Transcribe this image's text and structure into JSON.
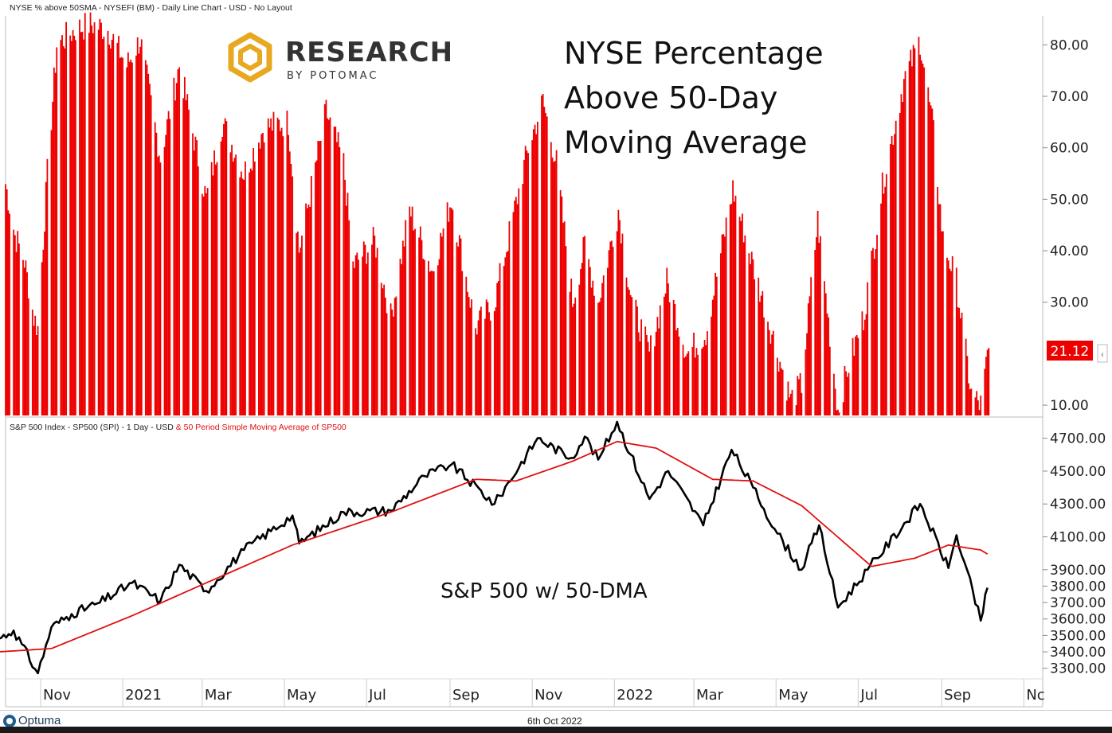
{
  "header": {
    "top_chart_info": "NYSE % above 50SMA - NYSEFI (BM) - Daily Line Chart - USD - No Layout",
    "bottom_chart_info_black": "S&P 500 Index  - SP500 (SPI) - 1 Day - USD ",
    "bottom_chart_info_red": "& 50 Period Simple Moving Average of SP500"
  },
  "logo": {
    "line1": "RESEARCH",
    "line2": "BY POTOMAC"
  },
  "annotations": {
    "title_line1": "NYSE Percentage",
    "title_line2": "Above 50-Day",
    "title_line3": "Moving Average",
    "sp_label": "S&P 500 w/ 50-DMA"
  },
  "last_value_label": "21.12",
  "footer": {
    "brand": "Optuma",
    "date": "6th Oct 2022"
  },
  "colors": {
    "bars": "#ee0000",
    "price": "#000000",
    "sma": "#e01010",
    "value_tag": "#ee0000"
  },
  "chart_data": [
    {
      "type": "bar",
      "series_name": "NYSE % above 50SMA",
      "ylim": [
        8,
        85
      ],
      "y_ticks": [
        "80.00",
        "70.00",
        "60.00",
        "50.00",
        "40.00",
        "30.00",
        "10.00"
      ],
      "x_ticks": [
        "Nov",
        "2021",
        "Mar",
        "May",
        "Jul",
        "Sep",
        "Nov",
        "2022",
        "Mar",
        "May",
        "Jul",
        "Sep",
        "Nc"
      ],
      "anchors": [
        {
          "x": "2020-10-06",
          "y": 53
        },
        {
          "x": "2020-10-13",
          "y": 43
        },
        {
          "x": "2020-10-20",
          "y": 38
        },
        {
          "x": "2020-10-27",
          "y": 27
        },
        {
          "x": "2020-10-30",
          "y": 25
        },
        {
          "x": "2020-11-06",
          "y": 55
        },
        {
          "x": "2020-11-13",
          "y": 80
        },
        {
          "x": "2020-11-27",
          "y": 83
        },
        {
          "x": "2020-12-08",
          "y": 84
        },
        {
          "x": "2020-12-21",
          "y": 83
        },
        {
          "x": "2021-01-04",
          "y": 76
        },
        {
          "x": "2021-01-14",
          "y": 81
        },
        {
          "x": "2021-01-29",
          "y": 58
        },
        {
          "x": "2021-02-12",
          "y": 76
        },
        {
          "x": "2021-03-04",
          "y": 50
        },
        {
          "x": "2021-03-16",
          "y": 65
        },
        {
          "x": "2021-04-01",
          "y": 55
        },
        {
          "x": "2021-04-16",
          "y": 64
        },
        {
          "x": "2021-05-04",
          "y": 65
        },
        {
          "x": "2021-05-12",
          "y": 40
        },
        {
          "x": "2021-06-01",
          "y": 67
        },
        {
          "x": "2021-06-14",
          "y": 57
        },
        {
          "x": "2021-06-21",
          "y": 37
        },
        {
          "x": "2021-07-07",
          "y": 42
        },
        {
          "x": "2021-07-19",
          "y": 27
        },
        {
          "x": "2021-08-02",
          "y": 48
        },
        {
          "x": "2021-08-19",
          "y": 36
        },
        {
          "x": "2021-09-02",
          "y": 50
        },
        {
          "x": "2021-09-20",
          "y": 25
        },
        {
          "x": "2021-10-04",
          "y": 30
        },
        {
          "x": "2021-10-29",
          "y": 60
        },
        {
          "x": "2021-11-09",
          "y": 69
        },
        {
          "x": "2021-11-19",
          "y": 57
        },
        {
          "x": "2021-12-01",
          "y": 30
        },
        {
          "x": "2021-12-10",
          "y": 41
        },
        {
          "x": "2021-12-20",
          "y": 30
        },
        {
          "x": "2022-01-04",
          "y": 48
        },
        {
          "x": "2022-01-14",
          "y": 30
        },
        {
          "x": "2022-01-27",
          "y": 20
        },
        {
          "x": "2022-02-09",
          "y": 34
        },
        {
          "x": "2022-02-24",
          "y": 20
        },
        {
          "x": "2022-03-10",
          "y": 24
        },
        {
          "x": "2022-03-30",
          "y": 52
        },
        {
          "x": "2022-04-11",
          "y": 40
        },
        {
          "x": "2022-04-28",
          "y": 24
        },
        {
          "x": "2022-05-12",
          "y": 11
        },
        {
          "x": "2022-05-20",
          "y": 14
        },
        {
          "x": "2022-06-01",
          "y": 46
        },
        {
          "x": "2022-06-16",
          "y": 9
        },
        {
          "x": "2022-06-23",
          "y": 17
        },
        {
          "x": "2022-07-05",
          "y": 27
        },
        {
          "x": "2022-07-20",
          "y": 54
        },
        {
          "x": "2022-08-04",
          "y": 73
        },
        {
          "x": "2022-08-16",
          "y": 81
        },
        {
          "x": "2022-08-26",
          "y": 63
        },
        {
          "x": "2022-09-02",
          "y": 42
        },
        {
          "x": "2022-09-12",
          "y": 34
        },
        {
          "x": "2022-09-23",
          "y": 12
        },
        {
          "x": "2022-09-30",
          "y": 10
        },
        {
          "x": "2022-10-06",
          "y": 21.12
        }
      ]
    },
    {
      "type": "line",
      "ylim": [
        3250,
        4800
      ],
      "y_ticks": [
        "4700.00",
        "4500.00",
        "4300.00",
        "4100.00",
        "3900.00",
        "3800.00",
        "3700.00",
        "3600.00",
        "3500.00",
        "3400.00",
        "3300.00"
      ],
      "series": [
        {
          "name": "S&P 500 Index",
          "color": "#000000",
          "points": [
            {
              "x": "2020-10-01",
              "y": 3480
            },
            {
              "x": "2020-10-12",
              "y": 3530
            },
            {
              "x": "2020-10-30",
              "y": 3270
            },
            {
              "x": "2020-11-09",
              "y": 3550
            },
            {
              "x": "2020-11-24",
              "y": 3630
            },
            {
              "x": "2020-12-15",
              "y": 3700
            },
            {
              "x": "2021-01-08",
              "y": 3820
            },
            {
              "x": "2021-01-29",
              "y": 3710
            },
            {
              "x": "2021-02-12",
              "y": 3930
            },
            {
              "x": "2021-03-04",
              "y": 3770
            },
            {
              "x": "2021-04-01",
              "y": 4020
            },
            {
              "x": "2021-05-07",
              "y": 4230
            },
            {
              "x": "2021-05-12",
              "y": 4060
            },
            {
              "x": "2021-06-14",
              "y": 4250
            },
            {
              "x": "2021-07-19",
              "y": 4260
            },
            {
              "x": "2021-08-13",
              "y": 4470
            },
            {
              "x": "2021-09-02",
              "y": 4540
            },
            {
              "x": "2021-10-04",
              "y": 4300
            },
            {
              "x": "2021-11-05",
              "y": 4700
            },
            {
              "x": "2021-11-30",
              "y": 4580
            },
            {
              "x": "2021-12-10",
              "y": 4710
            },
            {
              "x": "2021-12-20",
              "y": 4570
            },
            {
              "x": "2022-01-03",
              "y": 4800
            },
            {
              "x": "2022-01-27",
              "y": 4330
            },
            {
              "x": "2022-02-10",
              "y": 4500
            },
            {
              "x": "2022-03-08",
              "y": 4170
            },
            {
              "x": "2022-03-29",
              "y": 4630
            },
            {
              "x": "2022-04-14",
              "y": 4400
            },
            {
              "x": "2022-05-02",
              "y": 4120
            },
            {
              "x": "2022-05-20",
              "y": 3900
            },
            {
              "x": "2022-06-02",
              "y": 4170
            },
            {
              "x": "2022-06-16",
              "y": 3670
            },
            {
              "x": "2022-07-08",
              "y": 3900
            },
            {
              "x": "2022-08-16",
              "y": 4300
            },
            {
              "x": "2022-09-06",
              "y": 3910
            },
            {
              "x": "2022-09-12",
              "y": 4110
            },
            {
              "x": "2022-09-30",
              "y": 3590
            },
            {
              "x": "2022-10-05",
              "y": 3790
            }
          ]
        },
        {
          "name": "50 Period Simple Moving Average of SP500",
          "color": "#e01010",
          "points": [
            {
              "x": "2020-10-01",
              "y": 3400
            },
            {
              "x": "2020-11-09",
              "y": 3420
            },
            {
              "x": "2021-01-08",
              "y": 3620
            },
            {
              "x": "2021-03-04",
              "y": 3820
            },
            {
              "x": "2021-05-07",
              "y": 4050
            },
            {
              "x": "2021-07-19",
              "y": 4250
            },
            {
              "x": "2021-09-20",
              "y": 4450
            },
            {
              "x": "2021-10-20",
              "y": 4440
            },
            {
              "x": "2021-12-01",
              "y": 4560
            },
            {
              "x": "2022-01-03",
              "y": 4680
            },
            {
              "x": "2022-02-01",
              "y": 4640
            },
            {
              "x": "2022-03-15",
              "y": 4450
            },
            {
              "x": "2022-04-14",
              "y": 4440
            },
            {
              "x": "2022-05-20",
              "y": 4290
            },
            {
              "x": "2022-07-11",
              "y": 3920
            },
            {
              "x": "2022-08-12",
              "y": 3970
            },
            {
              "x": "2022-09-06",
              "y": 4050
            },
            {
              "x": "2022-09-30",
              "y": 4020
            },
            {
              "x": "2022-10-05",
              "y": 3995
            }
          ]
        }
      ]
    }
  ]
}
